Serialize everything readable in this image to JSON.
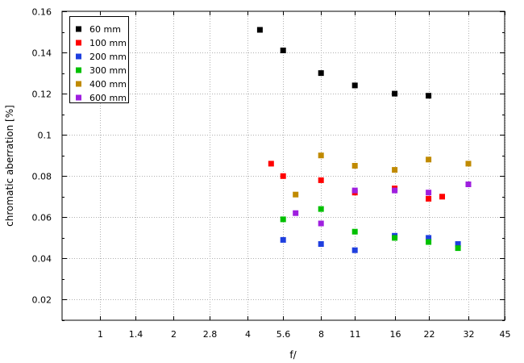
{
  "chart_data": {
    "type": "scatter",
    "xlabel": "f/",
    "ylabel": "chromatic aberration [%]",
    "x_scale": "log2",
    "x_ticks": [
      1,
      1.4,
      2,
      2.8,
      4,
      5.6,
      8,
      11,
      16,
      22,
      32,
      45
    ],
    "x_tick_labels": [
      "1",
      "1.4",
      "2",
      "2.8",
      "4",
      "5.6",
      "8",
      "11",
      "16",
      "22",
      "32",
      "45"
    ],
    "xlim": [
      0.7,
      45
    ],
    "y_ticks": [
      0.02,
      0.04,
      0.06,
      0.08,
      0.1,
      0.12,
      0.14,
      0.16
    ],
    "y_tick_labels": [
      "0.02",
      "0.04",
      "0.06",
      "0.08",
      "0.1",
      "0.12",
      "0.14",
      "0.16"
    ],
    "ylim": [
      0.01,
      0.16
    ],
    "grid": true,
    "legend_position": "top-left",
    "series": [
      {
        "name": "60 mm",
        "color": "#000000",
        "points": [
          [
            4.5,
            0.151
          ],
          [
            5.6,
            0.141
          ],
          [
            8,
            0.13
          ],
          [
            11,
            0.124
          ],
          [
            16,
            0.12
          ],
          [
            22,
            0.119
          ]
        ]
      },
      {
        "name": "100 mm",
        "color": "#ff0000",
        "points": [
          [
            5,
            0.086
          ],
          [
            5.6,
            0.08
          ],
          [
            8,
            0.078
          ],
          [
            11,
            0.072
          ],
          [
            16,
            0.074
          ],
          [
            22,
            0.069
          ],
          [
            25,
            0.07
          ]
        ]
      },
      {
        "name": "200 mm",
        "color": "#1f3fdf",
        "points": [
          [
            5.6,
            0.049
          ],
          [
            8,
            0.047
          ],
          [
            11,
            0.044
          ],
          [
            16,
            0.051
          ],
          [
            22,
            0.05
          ],
          [
            29,
            0.047
          ]
        ]
      },
      {
        "name": "300 mm",
        "color": "#00c000",
        "points": [
          [
            5.6,
            0.059
          ],
          [
            8,
            0.064
          ],
          [
            11,
            0.053
          ],
          [
            16,
            0.05
          ],
          [
            22,
            0.048
          ],
          [
            29,
            0.045
          ]
        ]
      },
      {
        "name": "400 mm",
        "color": "#c08a00",
        "points": [
          [
            6.3,
            0.071
          ],
          [
            8,
            0.09
          ],
          [
            11,
            0.085
          ],
          [
            16,
            0.083
          ],
          [
            22,
            0.088
          ],
          [
            32,
            0.086
          ]
        ]
      },
      {
        "name": "600 mm",
        "color": "#9f1fdf",
        "points": [
          [
            6.3,
            0.062
          ],
          [
            8,
            0.057
          ],
          [
            11,
            0.073
          ],
          [
            16,
            0.073
          ],
          [
            22,
            0.072
          ],
          [
            32,
            0.076
          ]
        ]
      }
    ]
  }
}
